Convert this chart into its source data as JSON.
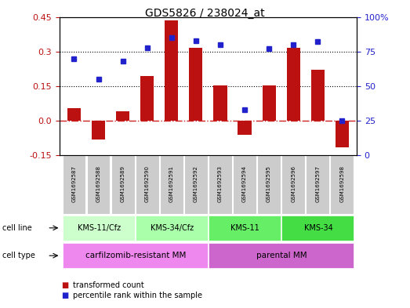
{
  "title": "GDS5826 / 238024_at",
  "samples": [
    "GSM1692587",
    "GSM1692588",
    "GSM1692589",
    "GSM1692590",
    "GSM1692591",
    "GSM1692592",
    "GSM1692593",
    "GSM1692594",
    "GSM1692595",
    "GSM1692596",
    "GSM1692597",
    "GSM1692598"
  ],
  "bar_values": [
    0.055,
    -0.08,
    0.04,
    0.195,
    0.435,
    0.315,
    0.155,
    -0.06,
    0.155,
    0.315,
    0.22,
    -0.115
  ],
  "dot_values_pct": [
    70,
    55,
    68,
    78,
    85,
    83,
    80,
    33,
    77,
    80,
    82,
    25
  ],
  "ylim_left": [
    -0.15,
    0.45
  ],
  "ylim_right": [
    0,
    100
  ],
  "yticks_left": [
    -0.15,
    0.0,
    0.15,
    0.3,
    0.45
  ],
  "yticks_right": [
    0,
    25,
    50,
    75,
    100
  ],
  "hlines": [
    0.15,
    0.3
  ],
  "bar_color": "#BB1111",
  "dot_color": "#2222CC",
  "zero_line_color": "#CC2222",
  "sample_bg_color": "#CCCCCC",
  "cell_line_groups": [
    {
      "label": "KMS-11/Cfz",
      "start": 0,
      "end": 3,
      "color": "#CCFFCC"
    },
    {
      "label": "KMS-34/Cfz",
      "start": 3,
      "end": 6,
      "color": "#AAFFAA"
    },
    {
      "label": "KMS-11",
      "start": 6,
      "end": 9,
      "color": "#66EE66"
    },
    {
      "label": "KMS-34",
      "start": 9,
      "end": 12,
      "color": "#44DD44"
    }
  ],
  "cell_type_groups": [
    {
      "label": "carfilzomib-resistant MM",
      "start": 0,
      "end": 6,
      "color": "#EE88EE"
    },
    {
      "label": "parental MM",
      "start": 6,
      "end": 12,
      "color": "#CC66CC"
    }
  ],
  "legend_bar_label": "transformed count",
  "legend_dot_label": "percentile rank within the sample"
}
